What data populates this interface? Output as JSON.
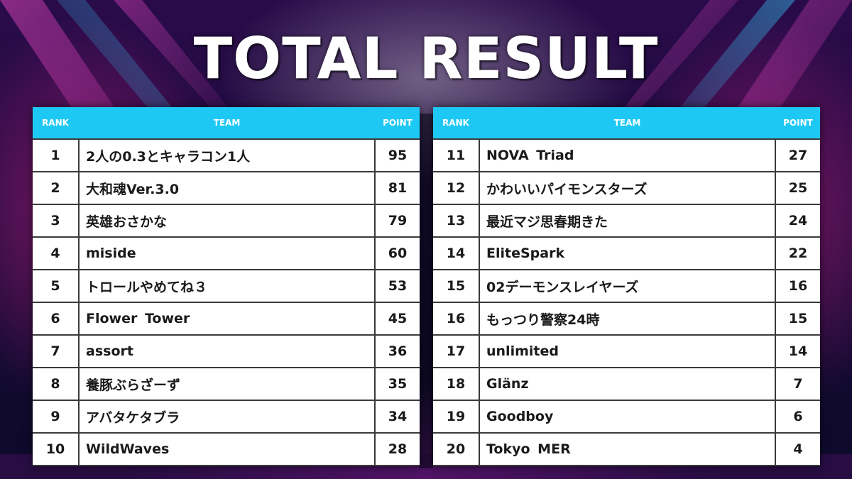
{
  "title": "TOTAL RESULT",
  "headers": {
    "rank": "RANK",
    "team": "TEAM",
    "point": "POINT"
  },
  "colors": {
    "header": "#1ec8f5",
    "border": "#3a3a3a",
    "text": "#1a1a1a"
  },
  "left_table": [
    {
      "rank": "1",
      "team": "2人の0.3とキャラコン1人",
      "point": "95"
    },
    {
      "rank": "2",
      "team": "大和魂Ver.3.0",
      "point": "81"
    },
    {
      "rank": "3",
      "team": "英雄おさかな",
      "point": "79"
    },
    {
      "rank": "4",
      "team": "miside",
      "point": "60"
    },
    {
      "rank": "5",
      "team": "トロールやめてね３",
      "point": "53"
    },
    {
      "rank": "6",
      "team": "Flower Tower",
      "point": "45"
    },
    {
      "rank": "7",
      "team": "assort",
      "point": "36"
    },
    {
      "rank": "8",
      "team": "養豚ぶらざーず",
      "point": "35"
    },
    {
      "rank": "9",
      "team": "アバタケタブラ",
      "point": "34"
    },
    {
      "rank": "10",
      "team": "WildWaves",
      "point": "28"
    }
  ],
  "right_table": [
    {
      "rank": "11",
      "team": "NOVA Triad",
      "point": "27"
    },
    {
      "rank": "12",
      "team": "かわいいパイモンスターズ",
      "point": "25"
    },
    {
      "rank": "13",
      "team": "最近マジ思春期きた",
      "point": "24"
    },
    {
      "rank": "14",
      "team": "EliteSpark",
      "point": "22"
    },
    {
      "rank": "15",
      "team": "02デーモンスレイヤーズ",
      "point": "16"
    },
    {
      "rank": "16",
      "team": "もっつり警察24時",
      "point": "15"
    },
    {
      "rank": "17",
      "team": "unlimited",
      "point": "14"
    },
    {
      "rank": "18",
      "team": "Glänz",
      "point": "7"
    },
    {
      "rank": "19",
      "team": "Goodboy",
      "point": "6"
    },
    {
      "rank": "20",
      "team": "Tokyo MER",
      "point": "4"
    }
  ]
}
